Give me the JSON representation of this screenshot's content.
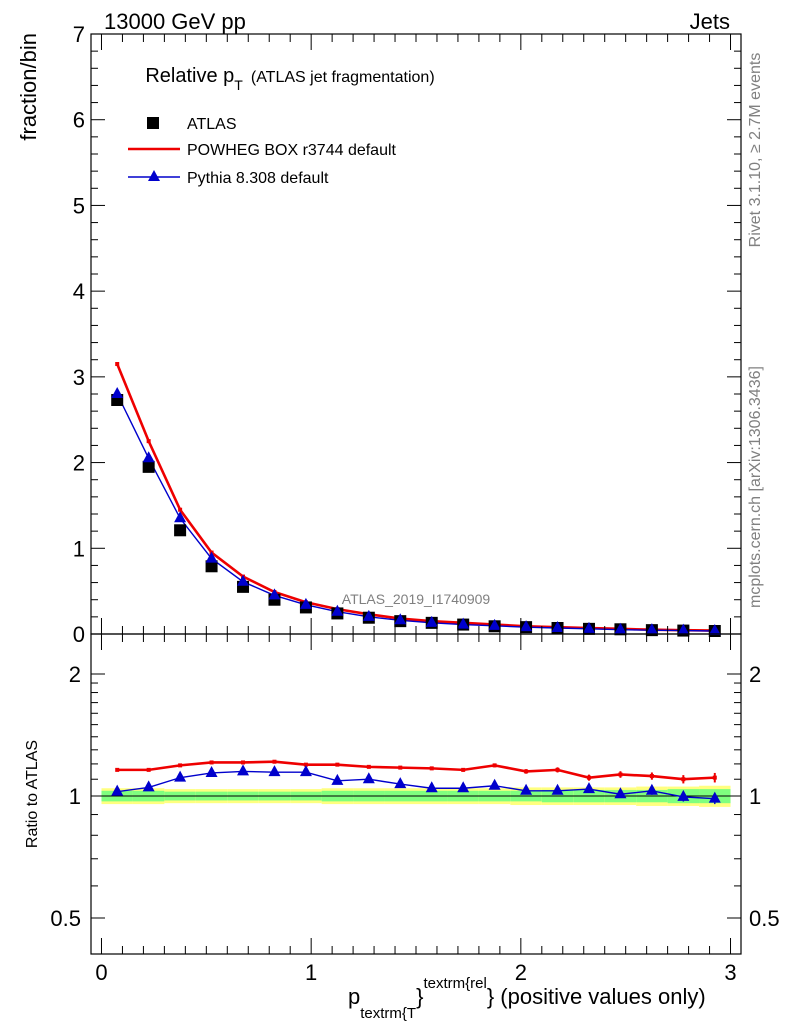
{
  "header": {
    "energy_label": "13000 GeV pp",
    "process_label": "Jets"
  },
  "side_labels": {
    "rivet": "Rivet 3.1.10, ≥ 2.7M events",
    "mcplots": "mcplots.cern.ch [arXiv:1306.3436]"
  },
  "colors": {
    "data": "#000000",
    "powheg": "#ee0000",
    "pythia": "#0000cc",
    "band_inner": "#7fff7f",
    "band_outer": "#ffff7f"
  },
  "chart_data": [
    {
      "type": "line",
      "title_main": "Relative p",
      "title_sub": "T",
      "title_suffix": "(ATLAS jet fragmentation)",
      "ylabel": "fraction/bin",
      "analysis_label": "ATLAS_2019_I1740909",
      "xlim": [
        -0.05,
        3.05
      ],
      "ylim": [
        0,
        7
      ],
      "yticks": [
        0,
        1,
        2,
        3,
        4,
        5,
        6,
        7
      ],
      "x": [
        0.075,
        0.225,
        0.375,
        0.525,
        0.675,
        0.825,
        0.975,
        1.125,
        1.275,
        1.425,
        1.575,
        1.725,
        1.875,
        2.025,
        2.175,
        2.325,
        2.475,
        2.625,
        2.775,
        2.925
      ],
      "legend": {
        "position": "top-left"
      },
      "series": [
        {
          "name": "ATLAS",
          "style": "markers",
          "values": [
            2.73,
            1.95,
            1.21,
            0.79,
            0.55,
            0.4,
            0.31,
            0.24,
            0.19,
            0.15,
            0.13,
            0.11,
            0.09,
            0.08,
            0.07,
            0.06,
            0.055,
            0.045,
            0.04,
            0.035
          ]
        },
        {
          "name": "POWHEG BOX r3744 default",
          "style": "line",
          "values": [
            3.15,
            2.25,
            1.45,
            0.95,
            0.67,
            0.49,
            0.37,
            0.29,
            0.23,
            0.18,
            0.15,
            0.13,
            0.11,
            0.09,
            0.08,
            0.07,
            0.06,
            0.05,
            0.045,
            0.04
          ]
        },
        {
          "name": "Pythia 8.308 default",
          "style": "line-triangles",
          "values": [
            2.8,
            2.05,
            1.35,
            0.88,
            0.61,
            0.45,
            0.34,
            0.26,
            0.2,
            0.16,
            0.13,
            0.11,
            0.095,
            0.08,
            0.07,
            0.06,
            0.05,
            0.045,
            0.04,
            0.035
          ]
        }
      ]
    },
    {
      "type": "line",
      "ylabel": "Ratio to ATLAS",
      "xlabel_main": "p",
      "xlabel_sub": "textrm{T",
      "xlabel_mid": "}",
      "xlabel_sup": "textrm{rel",
      "xlabel_end": "} (positive values only)",
      "xlim": [
        -0.05,
        3.05
      ],
      "ylim": [
        0.42,
        2.3
      ],
      "yscale": "log",
      "yticks": [
        0.5,
        1,
        2
      ],
      "ytick_labels": [
        "0.5",
        "1",
        "2"
      ],
      "xticks": [
        0,
        1,
        2,
        3
      ],
      "xtick_labels": [
        "0",
        "1",
        "2",
        "3"
      ],
      "x": [
        0.075,
        0.225,
        0.375,
        0.525,
        0.675,
        0.825,
        0.975,
        1.125,
        1.275,
        1.425,
        1.575,
        1.725,
        1.875,
        2.025,
        2.175,
        2.325,
        2.475,
        2.625,
        2.775,
        2.925
      ],
      "band_inner": [
        0.03,
        0.03,
        0.025,
        0.025,
        0.025,
        0.025,
        0.025,
        0.03,
        0.03,
        0.03,
        0.03,
        0.03,
        0.03,
        0.03,
        0.035,
        0.035,
        0.035,
        0.035,
        0.04,
        0.04
      ],
      "band_outer": [
        0.045,
        0.045,
        0.04,
        0.04,
        0.04,
        0.04,
        0.04,
        0.045,
        0.045,
        0.045,
        0.045,
        0.045,
        0.045,
        0.05,
        0.05,
        0.05,
        0.05,
        0.055,
        0.055,
        0.06
      ],
      "series": [
        {
          "name": "POWHEG BOX r3744 default",
          "values": [
            1.16,
            1.16,
            1.19,
            1.21,
            1.21,
            1.215,
            1.195,
            1.195,
            1.18,
            1.175,
            1.17,
            1.16,
            1.19,
            1.15,
            1.16,
            1.11,
            1.13,
            1.12,
            1.1,
            1.11
          ],
          "errors": [
            0.005,
            0.005,
            0.005,
            0.005,
            0.006,
            0.006,
            0.007,
            0.008,
            0.009,
            0.01,
            0.011,
            0.012,
            0.013,
            0.015,
            0.017,
            0.019,
            0.021,
            0.023,
            0.026,
            0.03
          ]
        },
        {
          "name": "Pythia 8.308 default",
          "values": [
            1.025,
            1.05,
            1.11,
            1.14,
            1.15,
            1.145,
            1.145,
            1.09,
            1.1,
            1.07,
            1.045,
            1.045,
            1.06,
            1.03,
            1.03,
            1.04,
            1.01,
            1.03,
            0.995,
            0.985
          ],
          "errors": [
            0.005,
            0.005,
            0.005,
            0.005,
            0.006,
            0.006,
            0.007,
            0.008,
            0.009,
            0.01,
            0.011,
            0.012,
            0.013,
            0.015,
            0.017,
            0.019,
            0.021,
            0.023,
            0.026,
            0.03
          ]
        }
      ]
    }
  ]
}
